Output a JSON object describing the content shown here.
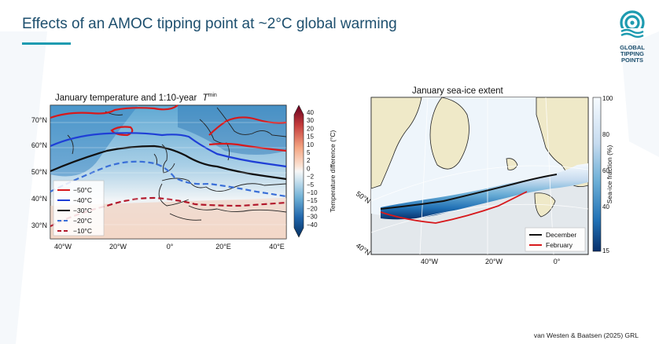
{
  "slide": {
    "title": "Effects of an AMOC tipping point at ~2°C global warming",
    "logo_lines": [
      "GLOBAL",
      "TIPPING",
      "POINTS"
    ],
    "citation": "van Westen & Baatsen (2025) GRL",
    "accent_color": "#1e9bb0",
    "title_color": "#1d4f6e"
  },
  "left_map": {
    "title": "January temperature and 1:10-year",
    "title_symbol": "T",
    "title_superscript": "min",
    "lat_labels": [
      "70°N",
      "60°N",
      "50°N",
      "40°N",
      "30°N"
    ],
    "lon_labels": [
      "40°W",
      "20°W",
      "0°",
      "20°E",
      "40°E"
    ],
    "legend": [
      {
        "label": "−50°C",
        "color": "#d7191c",
        "style": "solid"
      },
      {
        "label": "−40°C",
        "color": "#1f3fd6",
        "style": "solid"
      },
      {
        "label": "−30°C",
        "color": "#111111",
        "style": "solid"
      },
      {
        "label": "−20°C",
        "color": "#3a6fd8",
        "style": "dashed"
      },
      {
        "label": "−10°C",
        "color": "#b2182b",
        "style": "dashed"
      }
    ],
    "colorbar": {
      "label": "Temperature difference (°C)",
      "ticks": [
        "40",
        "30",
        "20",
        "15",
        "10",
        "5",
        "2",
        "0",
        "−2",
        "−5",
        "−10",
        "−15",
        "−20",
        "−30",
        "−40"
      ]
    }
  },
  "right_map": {
    "title": "January sea-ice extent",
    "lat_labels": [
      "50°N",
      "40°N"
    ],
    "lon_labels": [
      "40°W",
      "20°W",
      "0°"
    ],
    "legend": [
      {
        "label": "December",
        "color": "#111111"
      },
      {
        "label": "February",
        "color": "#d7191c"
      }
    ],
    "colorbar": {
      "label": "Sea-ice fraction (%)",
      "ticks": [
        "100",
        "80",
        "60",
        "40",
        "15"
      ]
    }
  }
}
